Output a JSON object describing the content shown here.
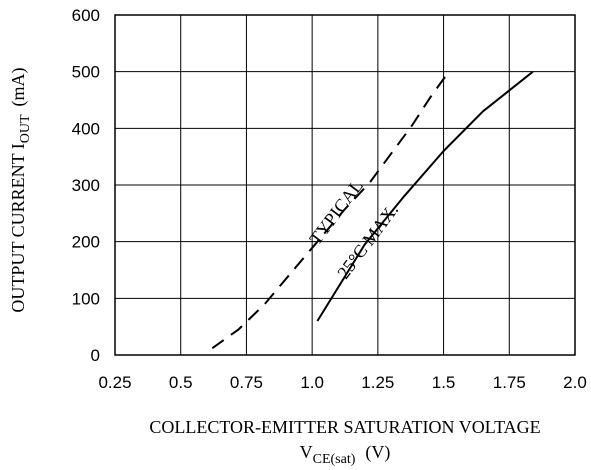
{
  "chart_data": {
    "type": "line",
    "title": "",
    "xlabel": "COLLECTOR-EMITTER SATURATION VOLTAGE",
    "xlabel_symbol": {
      "base": "V",
      "subscript": "CE(sat)",
      "unit": "(V)"
    },
    "ylabel": {
      "base": "OUTPUT CURRENT I",
      "subscript": "OUT",
      "unit": "(mA)"
    },
    "xlim": [
      0.25,
      2.0
    ],
    "ylim": [
      0,
      600
    ],
    "xticks": [
      "0.25",
      "0.5",
      "0.75",
      "1.0",
      "1.25",
      "1.5",
      "1.75",
      "2.0"
    ],
    "yticks": [
      "0",
      "100",
      "200",
      "300",
      "400",
      "500",
      "600"
    ],
    "xtick_values": [
      0.25,
      0.5,
      0.75,
      1.0,
      1.25,
      1.5,
      1.75,
      2.0
    ],
    "ytick_values": [
      0,
      100,
      200,
      300,
      400,
      500,
      600
    ],
    "grid": true,
    "legend": "none",
    "series": [
      {
        "name": "TYPICAL",
        "style": "dashed",
        "color": "#000000",
        "x": [
          0.62,
          0.72,
          0.82,
          0.92,
          1.02,
          1.12,
          1.22,
          1.3,
          1.38,
          1.45,
          1.52
        ],
        "y": [
          12,
          45,
          90,
          145,
          200,
          255,
          305,
          355,
          405,
          455,
          500
        ]
      },
      {
        "name": "25°C MAX.",
        "style": "solid",
        "color": "#000000",
        "x": [
          1.02,
          1.2,
          1.35,
          1.5,
          1.65,
          1.84
        ],
        "y": [
          60,
          195,
          280,
          360,
          430,
          500
        ]
      }
    ]
  }
}
